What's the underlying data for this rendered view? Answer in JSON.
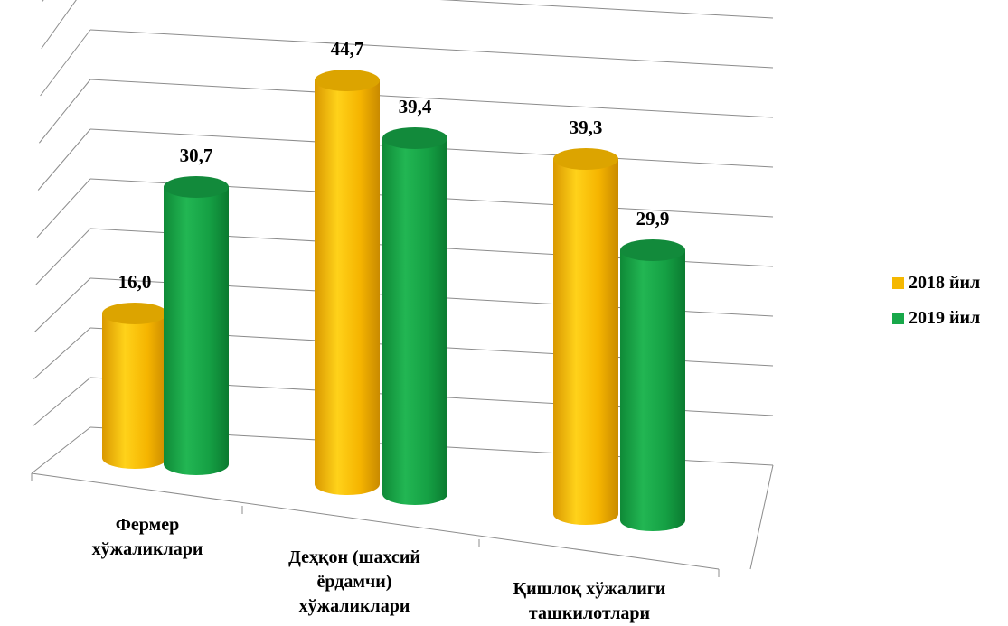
{
  "chart_data": {
    "type": "bar",
    "title": "",
    "xlabel": "",
    "ylabel": "",
    "categories": [
      [
        "Фермер",
        "хўжаликлари"
      ],
      [
        "Деҳқон (шахсий",
        "ёрдамчи)",
        "хўжаликлари"
      ],
      [
        "Қишлоқ хўжалиги",
        "ташкилотлари"
      ]
    ],
    "series": [
      {
        "name": "2018 йил",
        "color": "#f5b800",
        "values": [
          16.0,
          44.7,
          39.3
        ],
        "labels": [
          "16,0",
          "44,7",
          "39,3"
        ]
      },
      {
        "name": "2019 йил",
        "color": "#18a84a",
        "values": [
          30.7,
          39.4,
          29.9
        ],
        "labels": [
          "30,7",
          "39,4",
          "29,9"
        ]
      }
    ],
    "ylim": [
      0,
      50
    ],
    "gridlines": true,
    "legend": "right",
    "style": "3d-cylinder"
  }
}
